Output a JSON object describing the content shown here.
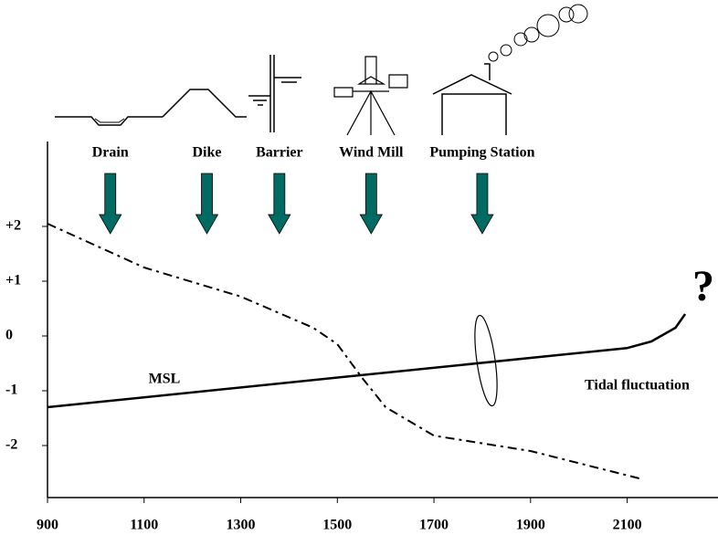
{
  "chart_data": {
    "type": "line",
    "x": [
      900,
      1100,
      1300,
      1450,
      1500,
      1550,
      1600,
      1700,
      1900,
      2125
    ],
    "series": [
      {
        "color": "#000000",
        "dash": "dash-dot",
        "x": [
          900,
          1100,
          1300,
          1450,
          1500,
          1550,
          1600,
          1700,
          1900,
          2125
        ],
        "values": [
          2.05,
          1.25,
          0.72,
          0.15,
          -0.15,
          -0.75,
          -1.3,
          -1.82,
          -2.1,
          -2.6
        ]
      },
      {
        "color": "#000000",
        "dash": "solid",
        "x": [
          900,
          2100,
          2150,
          2200,
          2220
        ],
        "values": [
          -1.3,
          -0.22,
          -0.1,
          0.15,
          0.4
        ]
      }
    ],
    "xlim": [
      900,
      2288
    ],
    "xticks": [
      900,
      1100,
      1300,
      1500,
      1700,
      1900,
      2100
    ],
    "ylim": [
      -2.95,
      3.55
    ],
    "yticks": [
      {
        "value": 2,
        "label": "+2"
      },
      {
        "value": 1,
        "label": "+1"
      },
      0,
      -1,
      -2
    ],
    "events": [
      {
        "label": "Drain",
        "x": 1030
      },
      {
        "label": "Dike",
        "x": 1230
      },
      {
        "label": "Barrier",
        "x": 1380
      },
      {
        "label": "Wind Mill",
        "x": 1570
      },
      {
        "label": "Pumping Station",
        "x": 1800
      }
    ],
    "arrow_color": "#006b63",
    "annotations": [
      "MSL",
      "Tidal fluctuation",
      "?"
    ]
  }
}
